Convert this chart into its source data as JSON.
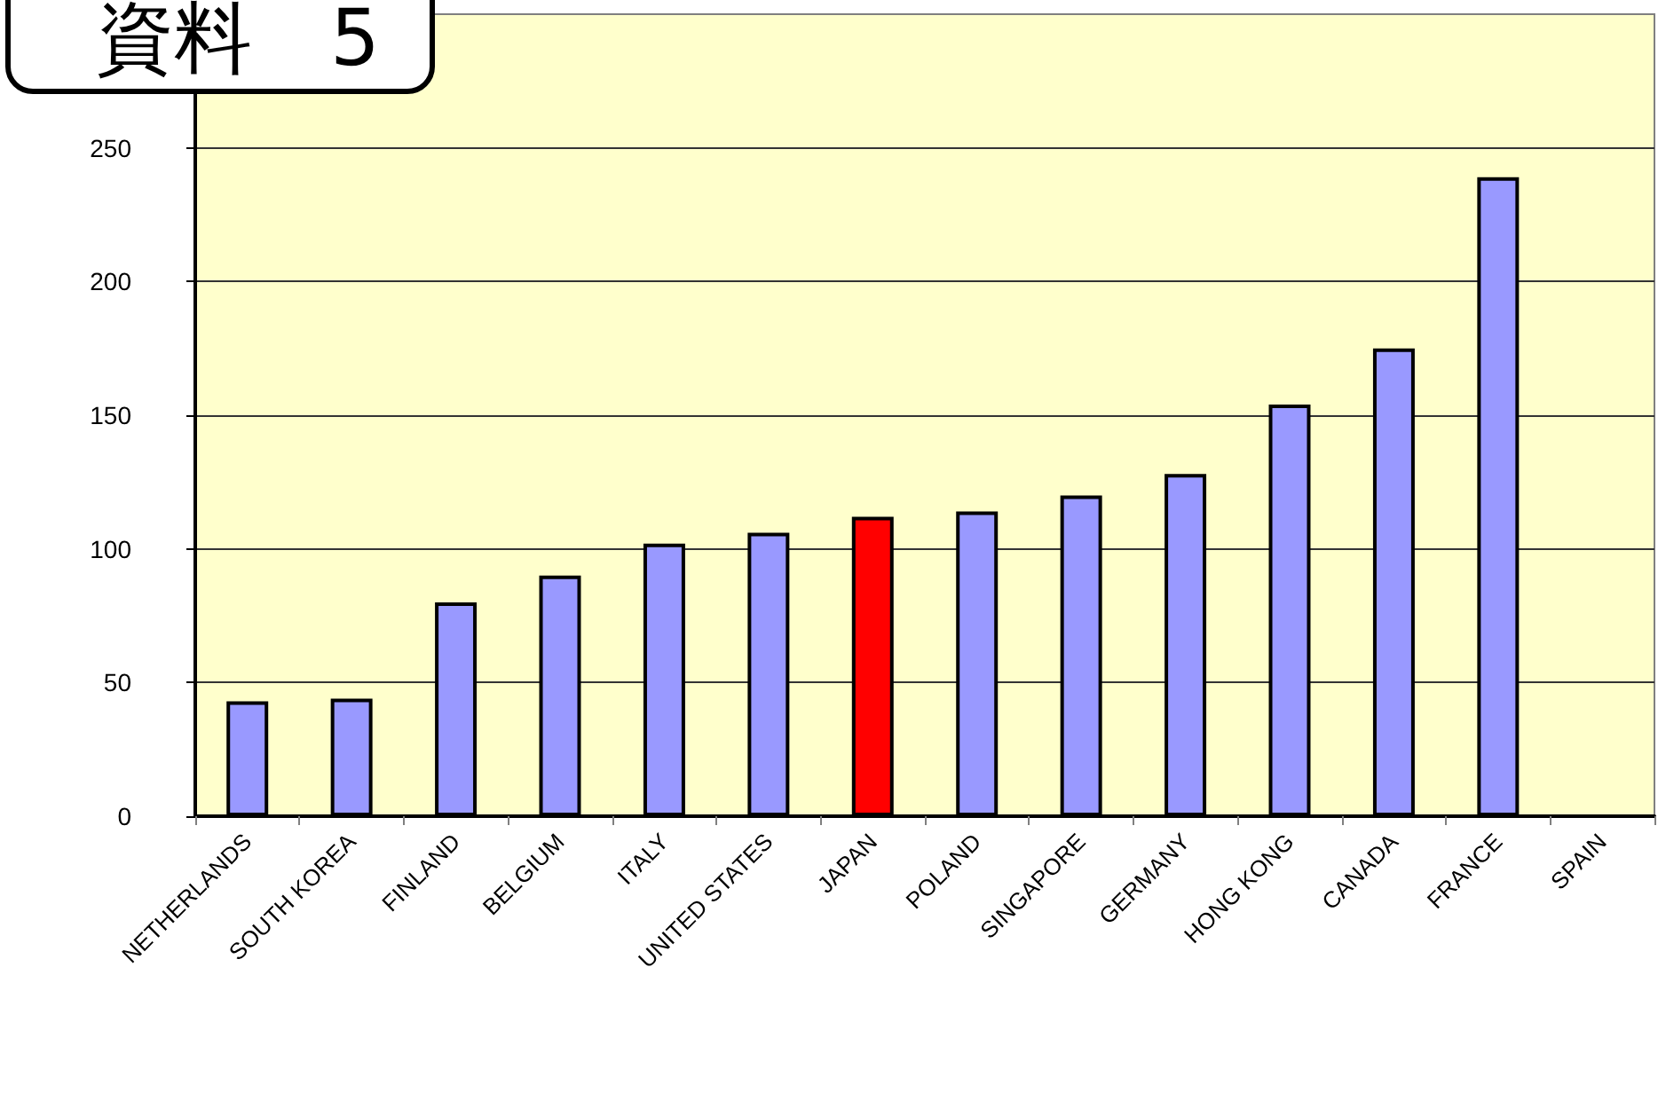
{
  "chart_data": {
    "type": "bar",
    "title": "資料　5",
    "categories": [
      "NETHERLANDS",
      "SOUTH KOREA",
      "FINLAND",
      "BELGIUM",
      "ITALY",
      "UNITED STATES",
      "JAPAN",
      "POLAND",
      "SINGAPORE",
      "GERMANY",
      "HONG KONG",
      "CANADA",
      "FRANCE",
      "SPAIN"
    ],
    "values": [
      43,
      44,
      80,
      90,
      102,
      106,
      112,
      114,
      120,
      128,
      154,
      175,
      239,
      null
    ],
    "colors": [
      "#9999ff",
      "#9999ff",
      "#9999ff",
      "#9999ff",
      "#9999ff",
      "#9999ff",
      "#ff0000",
      "#9999ff",
      "#9999ff",
      "#9999ff",
      "#9999ff",
      "#9999ff",
      "#9999ff",
      "#9999ff"
    ],
    "ylim": [
      0,
      300
    ],
    "yticks": [
      0,
      50,
      100,
      150,
      200,
      250
    ],
    "grid": "y"
  }
}
